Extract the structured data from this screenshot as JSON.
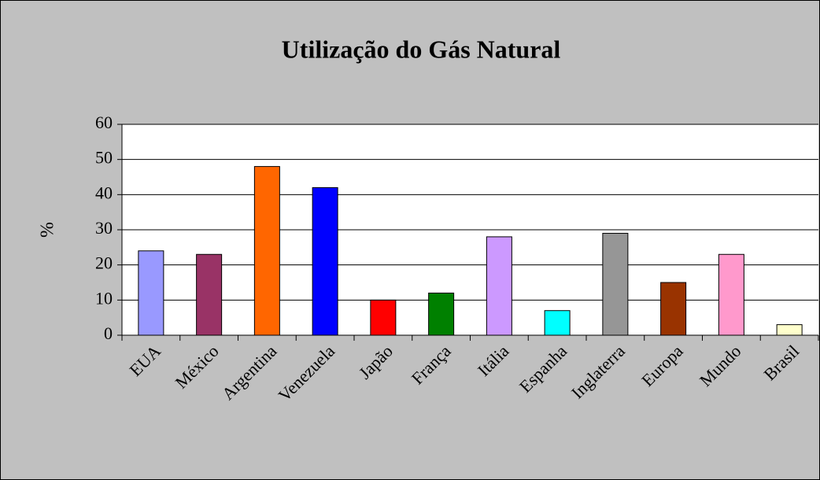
{
  "chart_data": {
    "type": "bar",
    "title": "Utilização do Gás Natural",
    "y_label": "%",
    "categories": [
      "EUA",
      "México",
      "Argentina",
      "Venezuela",
      "Japão",
      "França",
      "Itália",
      "Espanha",
      "Inglaterra",
      "Europa",
      "Mundo",
      "Brasil"
    ],
    "values": [
      24,
      23,
      48,
      42,
      10,
      12,
      28,
      7,
      29,
      15,
      23,
      3
    ],
    "colors": [
      "#9999ff",
      "#993366",
      "#ff6600",
      "#0000ff",
      "#ff0000",
      "#008000",
      "#cc99ff",
      "#00ffff",
      "#969696",
      "#993300",
      "#ff99cc",
      "#ffffcc"
    ],
    "ylim": [
      0,
      60
    ],
    "yticks": [
      0,
      10,
      20,
      30,
      40,
      50,
      60
    ],
    "grid": true
  }
}
